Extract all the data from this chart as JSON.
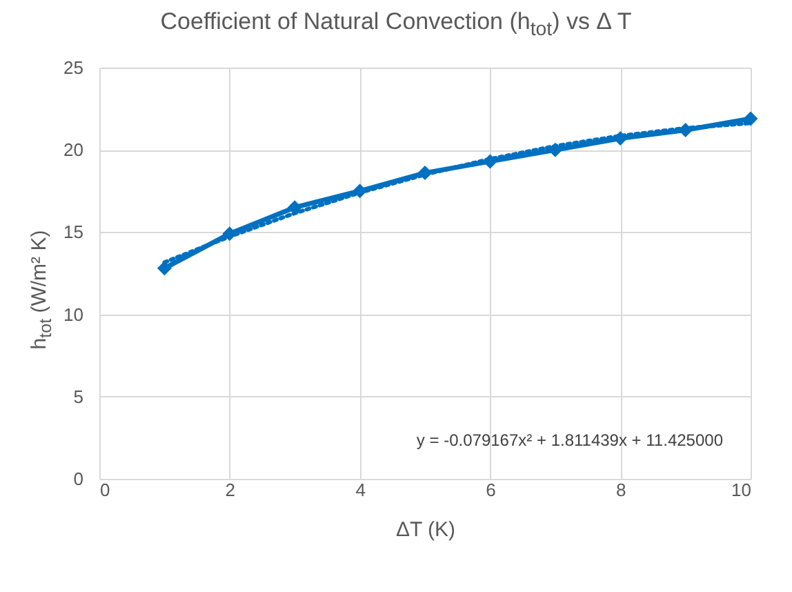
{
  "chart_data": {
    "type": "line",
    "title": "Coefficient of Natural Convection (h$_{tot}$) vs Δ T",
    "xlabel": "ΔT (K)",
    "ylabel": "h$_{tot}$ (W/m² K)",
    "x": [
      1,
      2,
      3,
      4,
      5,
      6,
      7,
      8,
      9,
      10
    ],
    "series": [
      {
        "color": "#0070c0",
        "values": [
          12.8,
          14.9,
          16.5,
          17.5,
          18.6,
          19.3,
          20.0,
          20.7,
          21.2,
          21.9
        ],
        "marker": "diamond"
      },
      {
        "type": "line",
        "color": "#0070c0",
        "x": [
          1,
          2,
          3,
          4,
          5,
          6,
          7,
          8,
          9,
          10
        ],
        "values": [
          13.16,
          14.73,
          16.15,
          17.4,
          18.5,
          19.44,
          20.23,
          20.85,
          21.32,
          21.63
        ],
        "line_style": "dotted",
        "marker": "none"
      }
    ],
    "xlim": [
      0,
      10
    ],
    "xticks": [
      0,
      2,
      4,
      6,
      8,
      10
    ],
    "ylim": [
      0,
      25
    ],
    "yticks": [
      0,
      5,
      10,
      15,
      20,
      25
    ],
    "grid": true,
    "annotations": [
      "y = -0.079167x² + 1.811439x + 11.425000"
    ]
  }
}
